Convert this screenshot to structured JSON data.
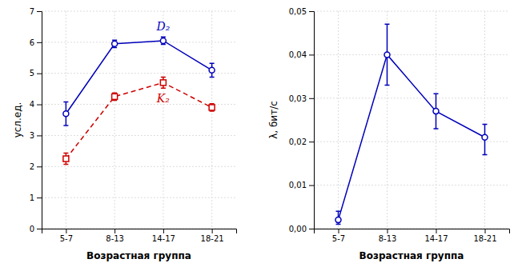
{
  "chart_data": [
    {
      "type": "line",
      "categories": [
        "5-7",
        "8-13",
        "14-17",
        "18-21"
      ],
      "series": [
        {
          "name": "D₂",
          "color": "#0000bb",
          "marker": "circle",
          "line_style": "solid",
          "values": [
            3.7,
            5.95,
            6.05,
            5.1
          ],
          "yerr": [
            0.38,
            0.12,
            0.12,
            0.22
          ]
        },
        {
          "name": "K₂",
          "color": "#cc0000",
          "marker": "square",
          "line_style": "dashed",
          "values": [
            2.25,
            4.25,
            4.7,
            3.9
          ],
          "yerr": [
            0.18,
            0.12,
            0.18,
            0.12
          ]
        }
      ],
      "xlabel": "Возрастная группа",
      "ylabel": "усл.ед.",
      "ylim": [
        0,
        7
      ],
      "yticks": [
        0,
        1,
        2,
        3,
        4,
        5,
        6,
        7
      ],
      "grid": true
    },
    {
      "type": "line",
      "categories": [
        "5-7",
        "8-13",
        "14-17",
        "18-21"
      ],
      "series": [
        {
          "color": "#0000bb",
          "marker": "circle",
          "line_style": "solid",
          "values": [
            0.002,
            0.04,
            0.027,
            0.021
          ],
          "yerr_lower": [
            0.001,
            0.007,
            0.004,
            0.004
          ],
          "yerr_upper": [
            0.002,
            0.007,
            0.004,
            0.003
          ]
        }
      ],
      "xlabel": "Возрастная группа",
      "ylabel": "λ, бит/с",
      "ylim": [
        0,
        0.05
      ],
      "yticks": [
        {
          "value": 0.0,
          "label": "0,00"
        },
        {
          "value": 0.01,
          "label": "0,01"
        },
        {
          "value": 0.02,
          "label": "0,02"
        },
        {
          "value": 0.03,
          "label": "0,03"
        },
        {
          "value": 0.04,
          "label": "0,04"
        },
        {
          "value": 0.05,
          "label": "0,05"
        }
      ],
      "grid": true
    }
  ]
}
